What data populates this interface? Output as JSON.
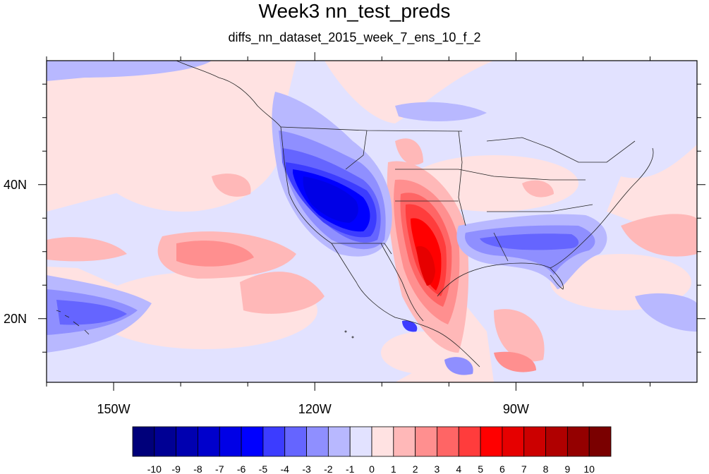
{
  "title": "Week3 nn_test_preds",
  "subtitle": "diffs_nn_dataset_2015_week_7_ens_10_f_2",
  "map": {
    "lon_range": [
      -160,
      -63
    ],
    "lat_range": [
      10.5,
      58.5
    ],
    "x_ticks": [
      {
        "lon": -150,
        "label": "150W"
      },
      {
        "lon": -120,
        "label": "120W"
      },
      {
        "lon": -90,
        "label": "90W"
      }
    ],
    "y_ticks": [
      {
        "lat": 40,
        "label": "40N"
      },
      {
        "lat": 20,
        "label": "20N"
      }
    ]
  },
  "colorbar": {
    "labels": [
      "-10",
      "-9",
      "-8",
      "-7",
      "-6",
      "-5",
      "-4",
      "-3",
      "-2",
      "-1",
      "0",
      "1",
      "2",
      "3",
      "4",
      "5",
      "6",
      "7",
      "8",
      "9",
      "10"
    ],
    "colors": [
      "#00007a",
      "#000094",
      "#0000b0",
      "#0000cc",
      "#0000e6",
      "#0000ff",
      "#3c3cff",
      "#6565ff",
      "#8f8fff",
      "#b8b8ff",
      "#e2e2ff",
      "#ffe2e2",
      "#ffb8b8",
      "#ff8f8f",
      "#ff6565",
      "#ff3c3c",
      "#ff0000",
      "#e60000",
      "#cc0000",
      "#b00000",
      "#940000",
      "#7a0000"
    ]
  }
}
